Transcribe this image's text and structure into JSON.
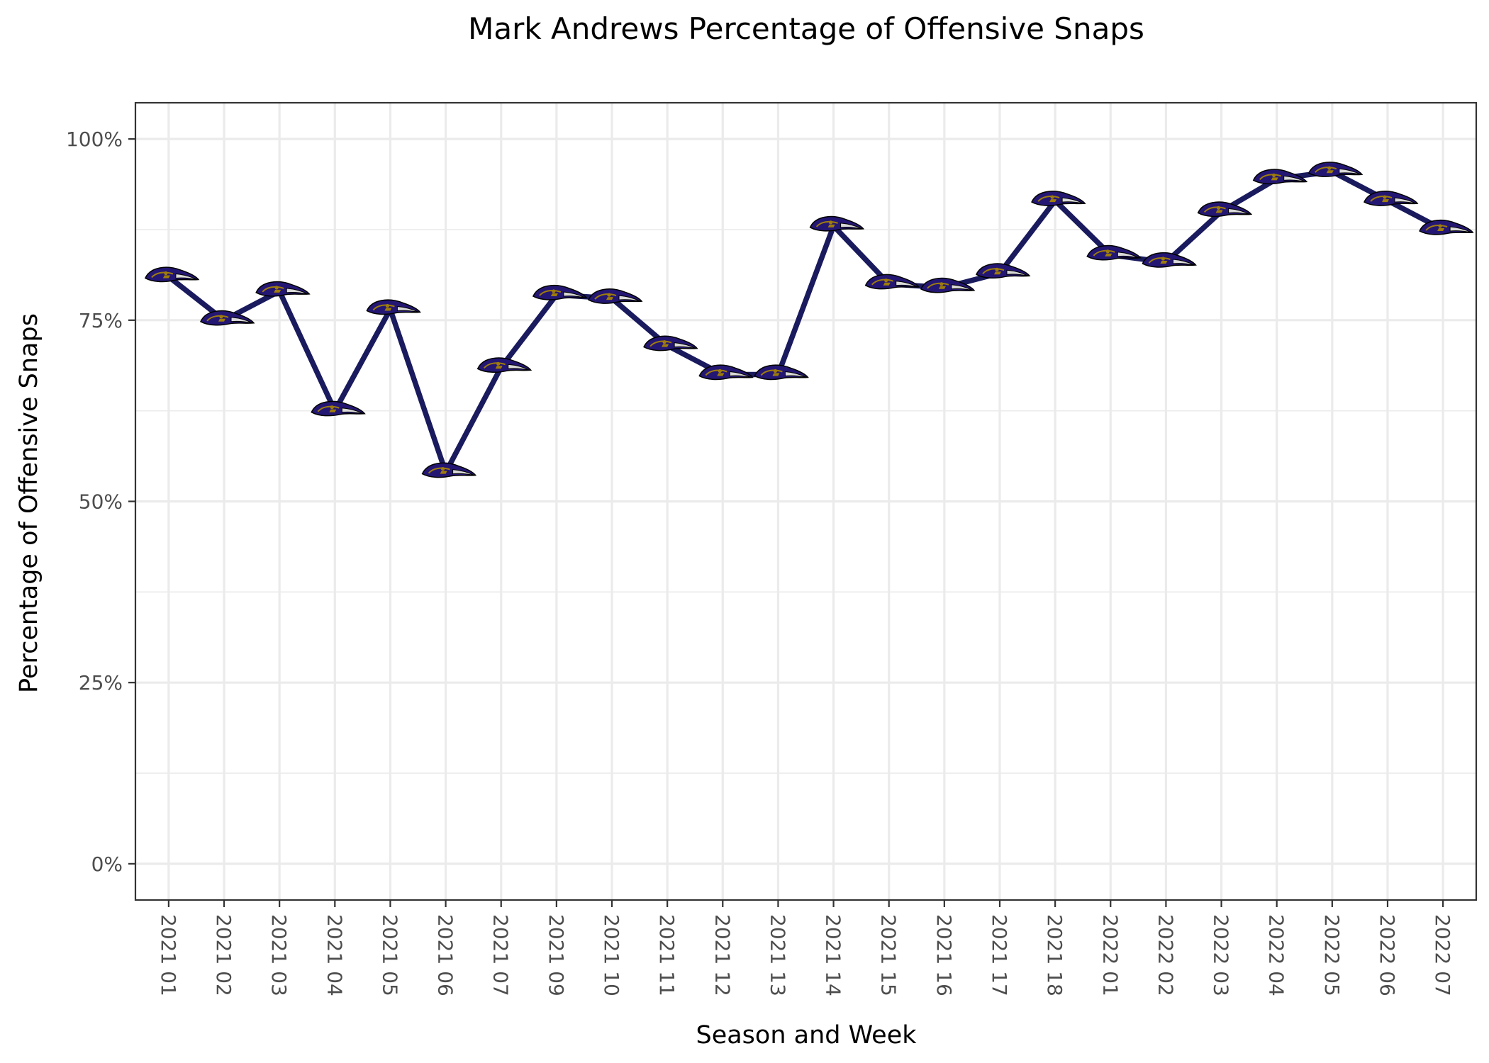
{
  "chart_data": {
    "type": "line",
    "title": "Mark Andrews Percentage of Offensive Snaps",
    "xlabel": "Season and Week",
    "ylabel": "Percentage of Offensive Snaps",
    "categories": [
      "2021 01",
      "2021 02",
      "2021 03",
      "2021 04",
      "2021 05",
      "2021 06",
      "2021 07",
      "2021 09",
      "2021 10",
      "2021 11",
      "2021 12",
      "2021 13",
      "2021 14",
      "2021 15",
      "2021 16",
      "2021 17",
      "2021 18",
      "2022 01",
      "2022 02",
      "2022 03",
      "2022 04",
      "2022 05",
      "2022 06",
      "2022 07"
    ],
    "series": [
      {
        "values": [
          0.81,
          0.75,
          0.79,
          0.625,
          0.765,
          0.54,
          0.685,
          0.785,
          0.78,
          0.715,
          0.675,
          0.675,
          0.88,
          0.8,
          0.795,
          0.815,
          0.915,
          0.84,
          0.83,
          0.9,
          0.945,
          0.955,
          0.915,
          0.875
        ],
        "color": "#1a1a5e",
        "marker": "ravens-logo-icon"
      }
    ],
    "yticks": [
      0,
      0.25,
      0.5,
      0.75,
      1.0
    ],
    "ytick_labels": [
      "0%",
      "25%",
      "50%",
      "75%",
      "100%"
    ],
    "ylim": [
      -0.05,
      1.05
    ],
    "grid": true,
    "legend": "none",
    "colors": {
      "line": "#1a1a5e",
      "gridline": "#ebebeb",
      "panel_border": "#333333",
      "marker_dark": "#241773",
      "marker_accent": "#9e7c0c"
    }
  }
}
